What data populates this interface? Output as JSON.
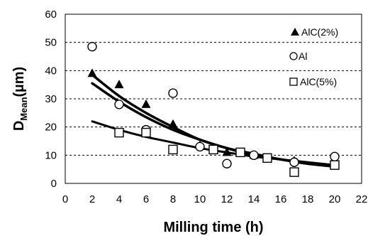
{
  "chart_data": {
    "type": "scatter",
    "xlabel": "Milling time (h)",
    "ylabel_main": "D",
    "ylabel_sub": "Mean",
    "ylabel_unit": "(µm)",
    "xlim": [
      0,
      22
    ],
    "ylim": [
      0,
      60
    ],
    "x_ticks": [
      "0",
      "2",
      "4",
      "6",
      "8",
      "10",
      "12",
      "14",
      "16",
      "18",
      "20",
      "22"
    ],
    "y_ticks": [
      "0",
      "10",
      "20",
      "30",
      "40",
      "50",
      "60"
    ],
    "grid": "horizontal-dashed",
    "legend_position": "top-right",
    "series": [
      {
        "name": "AlC(2%)",
        "marker": "filled-triangle",
        "points": [
          [
            2,
            39
          ],
          [
            4,
            35
          ],
          [
            6,
            28
          ],
          [
            8,
            21
          ],
          [
            10,
            13.5
          ],
          [
            12,
            11
          ],
          [
            14,
            10
          ],
          [
            17,
            8
          ],
          [
            20,
            7
          ]
        ],
        "trend": [
          [
            2,
            38.5
          ],
          [
            4,
            31
          ],
          [
            6,
            25
          ],
          [
            8,
            20
          ],
          [
            10,
            15.5
          ],
          [
            12,
            12.5
          ],
          [
            14,
            10
          ],
          [
            16,
            8.5
          ],
          [
            18,
            7
          ],
          [
            20,
            6
          ]
        ]
      },
      {
        "name": "Al",
        "marker": "open-circle",
        "points": [
          [
            2,
            48.5
          ],
          [
            4,
            28
          ],
          [
            6,
            19
          ],
          [
            8,
            32
          ],
          [
            10,
            13
          ],
          [
            12,
            7
          ],
          [
            14,
            10
          ],
          [
            17,
            7.5
          ],
          [
            20,
            9.5
          ]
        ],
        "trend": [
          [
            2,
            35.5
          ],
          [
            4,
            29
          ],
          [
            6,
            23.5
          ],
          [
            8,
            19
          ],
          [
            10,
            15.5
          ],
          [
            12,
            12.5
          ],
          [
            14,
            10.5
          ],
          [
            16,
            8.5
          ],
          [
            18,
            7
          ],
          [
            20,
            6
          ]
        ]
      },
      {
        "name": "AlC(5%)",
        "marker": "open-square",
        "points": [
          [
            4,
            18
          ],
          [
            6,
            18
          ],
          [
            8,
            12
          ],
          [
            11,
            12
          ],
          [
            13,
            11
          ],
          [
            15,
            9
          ],
          [
            17,
            4
          ],
          [
            20,
            6.5
          ]
        ],
        "trend": [
          [
            2,
            22
          ],
          [
            4,
            19
          ],
          [
            6,
            16.5
          ],
          [
            8,
            14.5
          ],
          [
            10,
            12.5
          ],
          [
            12,
            11
          ],
          [
            14,
            9.5
          ],
          [
            16,
            8.5
          ],
          [
            18,
            7.5
          ],
          [
            20,
            6.5
          ]
        ]
      }
    ]
  }
}
